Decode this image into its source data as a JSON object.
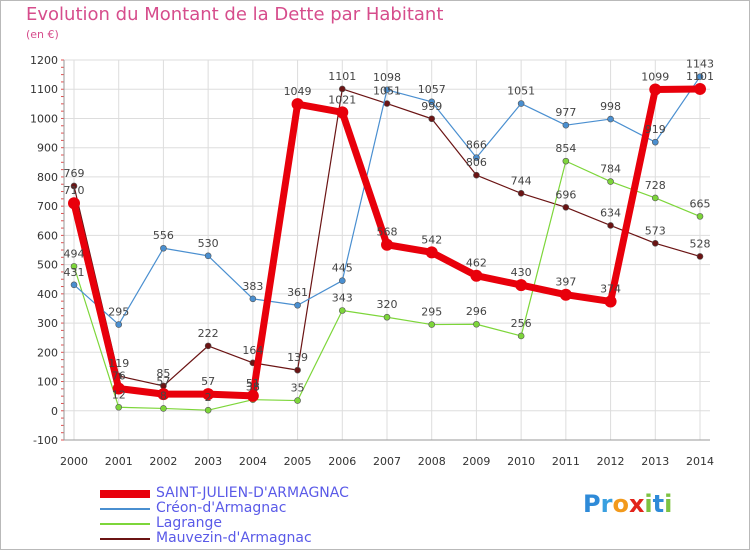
{
  "header": {
    "title": "Evolution du Montant de la Dette par Habitant",
    "subtitle": "(en €)"
  },
  "logo_text": "Proxiti",
  "chart_data": {
    "type": "line",
    "title": "Evolution du Montant de la Dette par Habitant",
    "subtitle": "(en €)",
    "xlabel": "",
    "ylabel": "",
    "x": [
      "2000",
      "2001",
      "2002",
      "2003",
      "2004",
      "2005",
      "2006",
      "2007",
      "2008",
      "2009",
      "2010",
      "2011",
      "2012",
      "2013",
      "2014"
    ],
    "ylim": [
      -100,
      1200
    ],
    "yticks": [
      -100,
      0,
      100,
      200,
      300,
      400,
      500,
      600,
      700,
      800,
      900,
      1000,
      1100,
      1200
    ],
    "grid": true,
    "legend_position": "bottom-left",
    "series": [
      {
        "name": "SAINT-JULIEN-D'ARMAGNAC",
        "color": "#e8000b",
        "values": [
          710,
          76,
          57,
          57,
          51,
          1049,
          1021,
          568,
          542,
          462,
          430,
          397,
          374,
          1099,
          1101
        ],
        "labels": [
          "710",
          "76",
          "57",
          "57",
          "51",
          "1049",
          "1021",
          "568",
          "542",
          "462",
          "430",
          "397",
          "374",
          "1099",
          "1101"
        ]
      },
      {
        "name": "Créon-d'Armagnac",
        "color": "#4a8fd0",
        "values": [
          431,
          295,
          556,
          530,
          383,
          361,
          445,
          1098,
          1057,
          866,
          1051,
          977,
          998,
          919,
          1143
        ],
        "labels": [
          "431",
          "295",
          "556",
          "530",
          "383",
          "361",
          "445",
          "1098",
          "1057",
          "866",
          "1051",
          "977",
          "998",
          "919",
          "1143"
        ]
      },
      {
        "name": "Lagrange",
        "color": "#7dd63a",
        "values": [
          494,
          12,
          8,
          2,
          38,
          35,
          343,
          320,
          295,
          296,
          256,
          854,
          784,
          728,
          665
        ],
        "labels": [
          "494",
          "12",
          "8",
          "2",
          "38",
          "35",
          "343",
          "320",
          "295",
          "296",
          "256",
          "854",
          "784",
          "728",
          "665"
        ]
      },
      {
        "name": "Mauvezin-d'Armagnac",
        "color": "#6b1414",
        "values": [
          769,
          119,
          85,
          222,
          164,
          139,
          1101,
          1051,
          999,
          806,
          744,
          696,
          634,
          573,
          528
        ],
        "labels": [
          "769",
          "119",
          "85",
          "222",
          "164",
          "139",
          "1101",
          "1051",
          "999",
          "806",
          "744",
          "696",
          "634",
          "573",
          "528"
        ]
      }
    ]
  }
}
